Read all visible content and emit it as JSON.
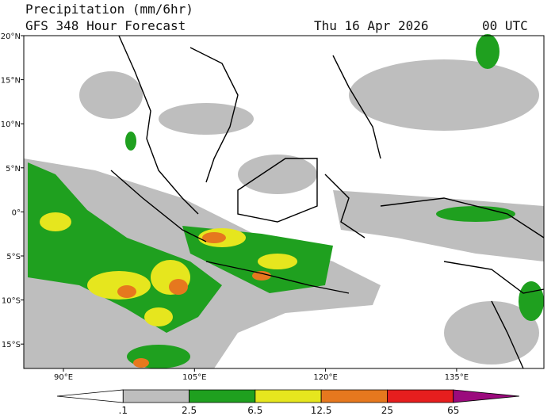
{
  "header": {
    "title": "Precipitation (mm/6hr)",
    "subtitle": "GFS 348 Hour Forecast",
    "date": "Thu 16 Apr 2026",
    "time": "00 UTC"
  },
  "map": {
    "lat_labels": [
      "20°N",
      "15°N",
      "10°N",
      "5°N",
      "0°",
      "5°S",
      "10°S",
      "15°S"
    ],
    "lon_labels": [
      "90°E",
      "105°E",
      "120°E",
      "135°E"
    ]
  },
  "colorbar": {
    "labels": [
      ".1",
      "2.5",
      "6.5",
      "12.5",
      "25",
      "65"
    ],
    "colors": [
      "#ffffff",
      "#bebebe",
      "#1fa01f",
      "#e6e61e",
      "#e6781e",
      "#e61e1e",
      "#9b0a7d"
    ]
  }
}
